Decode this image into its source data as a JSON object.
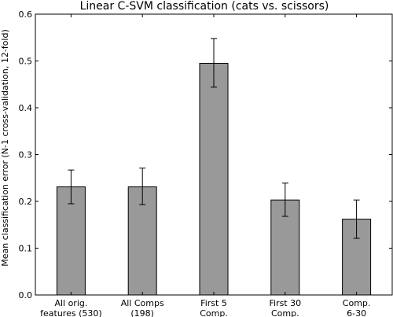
{
  "chart_data": {
    "type": "bar",
    "title": "Linear C-SVM classification (cats vs. scissors)",
    "xlabel": "",
    "ylabel": "Mean classification error (N-1 cross-validation, 12-fold)",
    "ylim": [
      0,
      0.6
    ],
    "yticks": [
      0.0,
      0.1,
      0.2,
      0.3,
      0.4,
      0.5,
      0.6
    ],
    "ytick_labels": [
      "0.0",
      "0.1",
      "0.2",
      "0.3",
      "0.4",
      "0.5",
      "0.6"
    ],
    "categories": [
      [
        "All orig.",
        "features (530)"
      ],
      [
        "All Comps",
        "(198)"
      ],
      [
        "First 5",
        "Comp."
      ],
      [
        "First 30",
        "Comp."
      ],
      [
        "Comp.",
        "6-30"
      ]
    ],
    "values": [
      0.231,
      0.231,
      0.495,
      0.203,
      0.162
    ],
    "error_low": [
      0.195,
      0.193,
      0.444,
      0.168,
      0.121
    ],
    "error_high": [
      0.267,
      0.271,
      0.548,
      0.239,
      0.203
    ],
    "bar_color": "#999999",
    "grid": false
  }
}
